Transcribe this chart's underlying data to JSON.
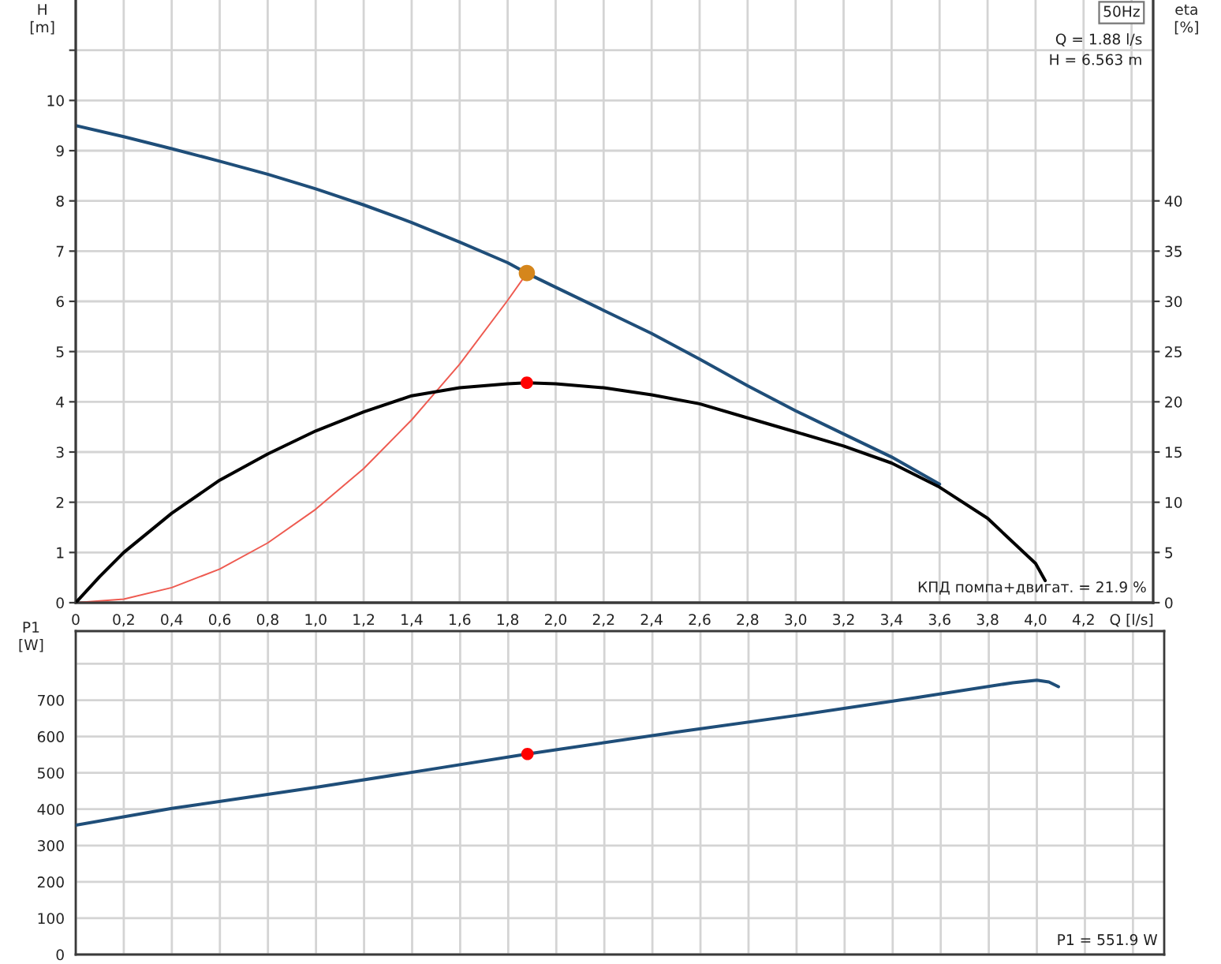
{
  "chart_data": [
    {
      "type": "line",
      "xlim": [
        0,
        4.49
      ],
      "xticks": [
        0,
        {
          "value": 0.2,
          "label": "0,2"
        },
        {
          "value": 0.4,
          "label": "0,4"
        },
        {
          "value": 0.6,
          "label": "0,6"
        },
        {
          "value": 0.8,
          "label": "0,8"
        },
        {
          "value": 1.0,
          "label": "1,0"
        },
        {
          "value": 1.2,
          "label": "1,2"
        },
        {
          "value": 1.4,
          "label": "1,4"
        },
        {
          "value": 1.6,
          "label": "1,6"
        },
        {
          "value": 1.8,
          "label": "1,8"
        },
        {
          "value": 2.0,
          "label": "2,0"
        },
        {
          "value": 2.2,
          "label": "2,2"
        },
        {
          "value": 2.4,
          "label": "2,4"
        },
        {
          "value": 2.6,
          "label": "2,6"
        },
        {
          "value": 2.8,
          "label": "2,8"
        },
        {
          "value": 3.0,
          "label": "3,0"
        },
        {
          "value": 3.2,
          "label": "3,2"
        },
        {
          "value": 3.4,
          "label": "3,4"
        },
        {
          "value": 3.6,
          "label": "3,6"
        },
        {
          "value": 3.8,
          "label": "3,8"
        },
        {
          "value": 4.0,
          "label": "4,0"
        },
        {
          "value": 4.2,
          "label": "4,2"
        },
        {
          "value": 4.4,
          "label": "Q [l/s]"
        }
      ],
      "ylabel": "H\n[m]",
      "ylim": [
        0,
        12
      ],
      "yticks": [
        0,
        1,
        2,
        3,
        4,
        5,
        6,
        7,
        8,
        9,
        10,
        {
          "value": 11,
          "label": null
        }
      ],
      "y2label": "eta\n[%]",
      "y2lim": [
        0,
        60
      ],
      "y2ticks": [
        0,
        5,
        10,
        15,
        20,
        25,
        30,
        35,
        40
      ],
      "grid": true,
      "series": [
        {
          "color": "#1f4e79",
          "x": [
            0,
            0.2,
            0.4,
            0.6,
            0.8,
            1.0,
            1.2,
            1.4,
            1.6,
            1.8,
            1.88,
            2.0,
            2.2,
            2.4,
            2.6,
            2.8,
            3.0,
            3.2,
            3.4,
            3.6
          ],
          "values": [
            9.5,
            9.28,
            9.04,
            8.79,
            8.53,
            8.24,
            7.92,
            7.57,
            7.18,
            6.77,
            6.56,
            6.28,
            5.82,
            5.36,
            4.85,
            4.32,
            3.82,
            3.36,
            2.9,
            2.36
          ]
        },
        {
          "color": "#ee5a50",
          "x": [
            0,
            0.2,
            0.4,
            0.6,
            0.8,
            1.0,
            1.2,
            1.4,
            1.6,
            1.8,
            1.88
          ],
          "values": [
            0,
            0.07,
            0.3,
            0.67,
            1.19,
            1.86,
            2.67,
            3.64,
            4.75,
            6.02,
            6.56
          ]
        },
        {
          "color": "#000000",
          "axis": "y2",
          "x": [
            0,
            0.1,
            0.2,
            0.4,
            0.6,
            0.8,
            1.0,
            1.2,
            1.4,
            1.6,
            1.8,
            1.88,
            2.0,
            2.2,
            2.4,
            2.6,
            2.8,
            3.0,
            3.2,
            3.4,
            3.6,
            3.8,
            4.0,
            4.04
          ],
          "values": [
            0,
            2.6,
            5,
            8.9,
            12.2,
            14.8,
            17.1,
            19.0,
            20.6,
            21.4,
            21.8,
            21.9,
            21.8,
            21.4,
            20.7,
            19.8,
            18.4,
            17.0,
            15.6,
            13.9,
            11.5,
            8.4,
            3.9,
            2.2
          ]
        },
        {
          "type": "scatter",
          "color": "#d5861c",
          "marker": "circle",
          "x": [
            1.88
          ],
          "values": [
            6.563
          ]
        },
        {
          "type": "scatter",
          "color": "#ff0000",
          "marker": "circle",
          "axis": "y2",
          "x": [
            1.88
          ],
          "values": [
            21.9
          ]
        }
      ],
      "annotations": [
        "50Hz",
        "Q = 1.88 l/s",
        "H = 6.563 m",
        "КПД помпа+двигат. = 21.9 %"
      ]
    },
    {
      "type": "line",
      "xlim": [
        0,
        4.53
      ],
      "xticks": [
        0,
        {
          "value": 0.2,
          "label": "0,2"
        },
        {
          "value": 0.4,
          "label": "0,4"
        },
        {
          "value": 0.6,
          "label": "0,6"
        },
        {
          "value": 0.8,
          "label": "0,8"
        },
        {
          "value": 1.0,
          "label": "1,0"
        },
        {
          "value": 1.2,
          "label": "1,2"
        },
        {
          "value": 1.4,
          "label": "1,4"
        },
        {
          "value": 1.6,
          "label": "1,6"
        },
        {
          "value": 1.8,
          "label": "1,8"
        },
        {
          "value": 2.0,
          "label": "2,0"
        },
        {
          "value": 2.2,
          "label": "2,2"
        },
        {
          "value": 2.4,
          "label": "2,4"
        },
        {
          "value": 2.6,
          "label": "2,6"
        },
        {
          "value": 2.8,
          "label": "2,8"
        },
        {
          "value": 3.0,
          "label": "3,0"
        },
        {
          "value": 3.2,
          "label": "3,2"
        },
        {
          "value": 3.4,
          "label": "3,4"
        },
        {
          "value": 3.6,
          "label": "3,6"
        },
        {
          "value": 3.8,
          "label": "3,8"
        },
        {
          "value": 4.0,
          "label": "4,0"
        },
        {
          "value": 4.2,
          "label": "4,2"
        },
        {
          "value": 4.4,
          "label": "Q [l/s]"
        }
      ],
      "tick_labels": "y",
      "ylabel": "P1\n[W]",
      "ylim": [
        0,
        890
      ],
      "yticks": [
        0,
        100,
        200,
        300,
        400,
        500,
        600,
        700,
        {
          "value": 800,
          "label": null
        }
      ],
      "grid": true,
      "series": [
        {
          "color": "#1f4e79",
          "x": [
            0,
            0.4,
            1.0,
            1.5,
            1.88,
            2.5,
            3.0,
            3.5,
            3.9,
            4.0,
            4.05,
            4.09
          ],
          "values": [
            356,
            402,
            460,
            512,
            552,
            612,
            658,
            707,
            748,
            755,
            750,
            737
          ]
        },
        {
          "type": "scatter",
          "color": "#ff0000",
          "marker": "circle",
          "x": [
            1.88
          ],
          "values": [
            551.9
          ]
        }
      ],
      "annotations": [
        "P1 = 551.9 W"
      ]
    }
  ]
}
